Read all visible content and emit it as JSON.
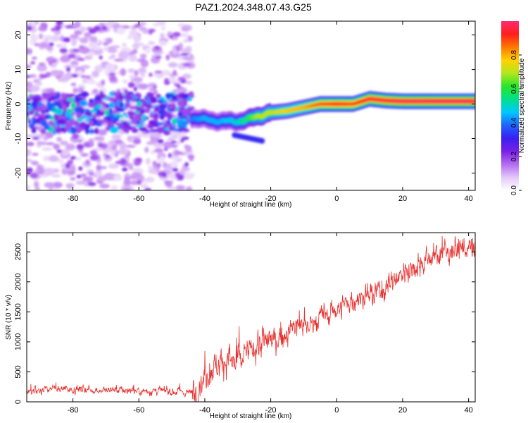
{
  "title": "PAZ1.2024.348.07.43.G25",
  "chart_data": [
    {
      "type": "heatmap",
      "xlabel": "Height of straight line (km)",
      "ylabel": "Frequency (Hz)",
      "xlim": [
        -94,
        42
      ],
      "ylim": [
        -25,
        24
      ],
      "xticks": [
        "-80",
        "-60",
        "-40",
        "-20",
        "0",
        "20",
        "40"
      ],
      "yticks": [
        "20",
        "10",
        "0",
        "-10",
        "-20"
      ],
      "colorbar": {
        "label": "Normalized spectral amplitude",
        "range": [
          0.0,
          1.0
        ],
        "ticks": [
          "0.0",
          "0.2",
          "0.4",
          "0.6",
          "0.8"
        ],
        "colormap": [
          "#ffffff",
          "#e2c8f8",
          "#b46cf0",
          "#7a1fe8",
          "#3a20f0",
          "#1e64ff",
          "#00c8ff",
          "#00e08c",
          "#28e628",
          "#b4e61e",
          "#ffd200",
          "#ff7800",
          "#ff1e1e",
          "#ff2b6e"
        ]
      },
      "ridge": {
        "x": [
          -44,
          -40,
          -35,
          -30,
          -27,
          -24,
          -20,
          -15,
          -10,
          -5,
          0,
          5,
          10,
          15,
          20,
          30,
          42
        ],
        "frequency": [
          -4,
          -4.5,
          -5,
          -5,
          -4.5,
          -3.5,
          -2.5,
          -2,
          -1,
          0,
          0,
          0,
          1.5,
          1,
          0.8,
          0.8,
          0.8
        ],
        "amplitude": [
          0.4,
          0.45,
          0.45,
          0.5,
          0.6,
          0.7,
          0.72,
          0.78,
          0.8,
          0.88,
          0.92,
          0.9,
          0.95,
          0.95,
          0.97,
          0.98,
          0.98
        ]
      },
      "noise_region_x": [
        -94,
        -44
      ],
      "noise_band_frequency": [
        -8,
        3
      ]
    },
    {
      "type": "line",
      "xlabel": "Height of straight line (km)",
      "ylabel": "SNR (10 * v/v)",
      "xlim": [
        -94,
        42
      ],
      "ylim": [
        0,
        2820
      ],
      "xticks": [
        "-80",
        "-60",
        "-40",
        "-20",
        "0",
        "20",
        "40"
      ],
      "yticks": [
        "0",
        "500",
        "1000",
        "1500",
        "2000",
        "2500"
      ],
      "series": [
        {
          "color": "#e8302e",
          "x": [
            -94,
            -85,
            -75,
            -65,
            -55,
            -48,
            -44,
            -42,
            -40,
            -36,
            -33,
            -30,
            -28,
            -25,
            -22,
            -18,
            -15,
            -12,
            -10,
            -6,
            -2,
            2,
            5,
            8,
            12,
            16,
            20,
            25,
            30,
            35,
            38,
            42
          ],
          "y": [
            200,
            220,
            200,
            190,
            180,
            170,
            150,
            250,
            450,
            650,
            700,
            650,
            750,
            900,
            1000,
            1050,
            1150,
            1300,
            1250,
            1350,
            1500,
            1600,
            1700,
            1750,
            1800,
            1950,
            2150,
            2300,
            2450,
            2550,
            2560,
            2540
          ]
        }
      ]
    }
  ]
}
